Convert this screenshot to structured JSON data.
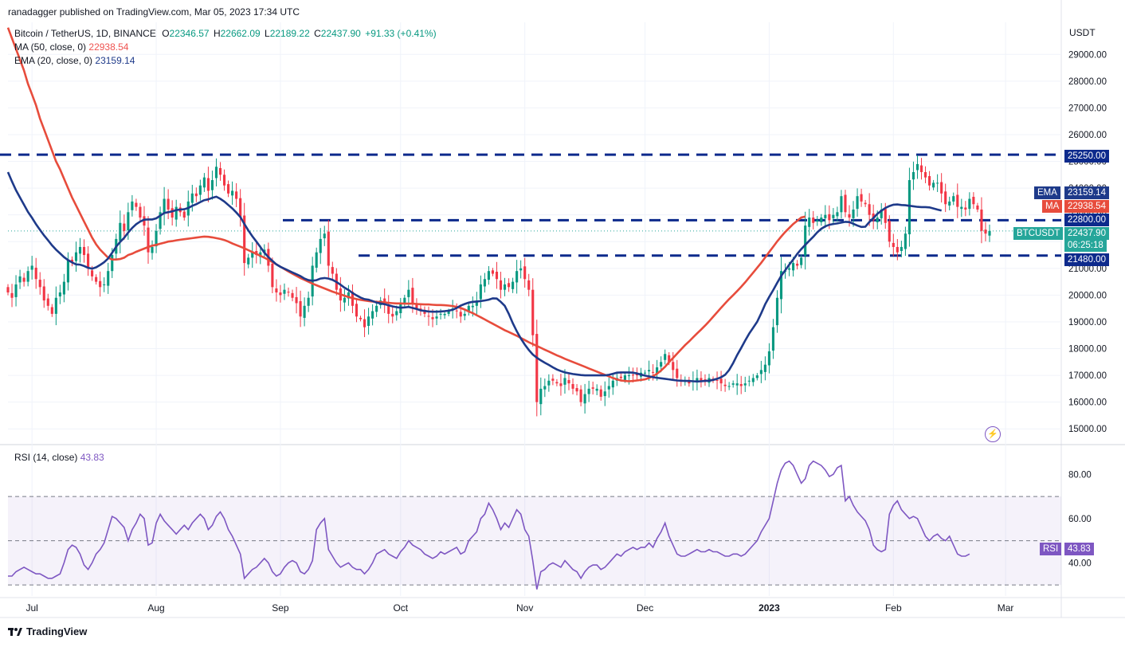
{
  "publisher": "ranadagger published on TradingView.com, Mar 05, 2023 17:34 UTC",
  "header": {
    "symbol": "Bitcoin / TetherUS, 1D, BINANCE",
    "open_label": "O",
    "open": "22346.57",
    "high_label": "H",
    "high": "22662.09",
    "low_label": "L",
    "low": "22189.22",
    "close_label": "C",
    "close": "22437.90",
    "change": "+91.33 (+0.41%)"
  },
  "ma_legend": {
    "label": "MA (50, close, 0)",
    "value": "22938.54"
  },
  "ema_legend": {
    "label": "EMA (20, close, 0)",
    "value": "23159.14"
  },
  "rsi_legend": {
    "label": "RSI (14, close)",
    "value": "43.83"
  },
  "currency": "USDT",
  "tags": {
    "ema": {
      "name": "EMA",
      "value": "23159.14"
    },
    "ma": {
      "name": "MA",
      "value": "22938.54"
    },
    "level_high": "25250.00",
    "level_mid": "22800.00",
    "price_symbol": "BTCUSDT",
    "price_value": "22437.90",
    "countdown": "06:25:18",
    "level_low": "21480.00",
    "rsi_name": "RSI",
    "rsi_value": "43.83"
  },
  "footer": {
    "brand": "TradingView"
  },
  "colors": {
    "up": "#089981",
    "down": "#f23645",
    "ma": "#e74c3c",
    "ema": "#1e3a8a",
    "rsi": "#7e57c2",
    "level": "#0d2a8c"
  },
  "chart_data": {
    "type": "candlestick",
    "title": "Bitcoin / TetherUS, 1D, BINANCE",
    "price_axis": {
      "ylim": [
        14500,
        30200
      ],
      "ticks": [
        15000,
        16000,
        17000,
        18000,
        19000,
        20000,
        21000,
        22000,
        23000,
        24000,
        25000,
        26000,
        27000,
        28000,
        29000
      ],
      "tick_labels": [
        "15000.00",
        "16000.00",
        "17000.00",
        "18000.00",
        "19000.00",
        "20000.00",
        "21000.00",
        "22000.00",
        "23000.00",
        "24000.00",
        "25000.00",
        "26000.00",
        "27000.00",
        "28000.00",
        "29000.00"
      ]
    },
    "x_axis": {
      "labels": [
        "Jul",
        "Aug",
        "Sep",
        "Oct",
        "Nov",
        "Dec",
        "2023",
        "Feb",
        "Mar"
      ],
      "label_day_index": [
        6,
        37,
        68,
        98,
        129,
        159,
        190,
        221,
        249
      ]
    },
    "levels": [
      25250,
      22800,
      21480
    ],
    "close": [
      20100,
      19900,
      20400,
      20700,
      20500,
      20900,
      21100,
      20600,
      20300,
      19800,
      19600,
      19300,
      19900,
      20100,
      20500,
      21300,
      21200,
      21600,
      21800,
      21500,
      21000,
      20700,
      20500,
      20300,
      20400,
      20900,
      21500,
      22100,
      22700,
      22400,
      23100,
      23500,
      23300,
      22900,
      22600,
      21600,
      21800,
      22400,
      23100,
      23600,
      23200,
      22900,
      23300,
      23100,
      22900,
      23500,
      23800,
      23700,
      24100,
      24400,
      23900,
      24300,
      24800,
      24500,
      24100,
      23800,
      23900,
      23600,
      22900,
      21200,
      21400,
      21600,
      21500,
      21600,
      21700,
      21100,
      20300,
      20100,
      20000,
      20200,
      20100,
      19900,
      19700,
      19200,
      19600,
      19900,
      21100,
      21600,
      22100,
      22300,
      21100,
      20800,
      20200,
      19800,
      19900,
      20100,
      19600,
      19200,
      19100,
      18800,
      19200,
      19400,
      19600,
      19800,
      19700,
      19300,
      19200,
      19400,
      19700,
      19900,
      20200,
      19700,
      19500,
      19400,
      19300,
      19200,
      19100,
      19200,
      19300,
      19300,
      19400,
      19500,
      19400,
      19200,
      19300,
      19600,
      19600,
      19800,
      20400,
      20600,
      20900,
      20800,
      20600,
      20200,
      20400,
      20300,
      20500,
      20900,
      21000,
      20600,
      20200,
      18500,
      16000,
      16500,
      16600,
      16800,
      16800,
      16700,
      16600,
      16900,
      16700,
      16500,
      16400,
      16000,
      16300,
      16500,
      16500,
      16500,
      16200,
      16400,
      16600,
      16800,
      16900,
      16900,
      17000,
      17000,
      17000,
      17000,
      17100,
      17100,
      17200,
      17100,
      17300,
      17500,
      17800,
      17500,
      17200,
      16900,
      16800,
      16800,
      16700,
      16800,
      16900,
      16800,
      16800,
      16900,
      16800,
      16800,
      16700,
      16600,
      16600,
      16700,
      16700,
      16600,
      16700,
      16800,
      16900,
      17000,
      17200,
      17400,
      17900,
      18800,
      19900,
      20900,
      20900,
      21000,
      21200,
      21100,
      21400,
      22600,
      22900,
      22700,
      22800,
      22900,
      23000,
      22800,
      23000,
      23100,
      23700,
      23100,
      22900,
      23200,
      23700,
      23500,
      23400,
      23000,
      22800,
      22900,
      23200,
      22700,
      22000,
      21800,
      21600,
      21800,
      22300,
      24300,
      24600,
      24900,
      24600,
      24400,
      24100,
      24200,
      24200,
      23800,
      23400,
      23500,
      23700,
      23300,
      23300,
      23200,
      23600,
      23400,
      23200,
      22400,
      22300,
      22400
    ],
    "ema20": [
      24600,
      24250,
      23920,
      23650,
      23380,
      23110,
      22890,
      22650,
      22440,
      22230,
      22050,
      21860,
      21700,
      21560,
      21420,
      21310,
      21220,
      21150,
      21140,
      21090,
      21020,
      20990,
      21040,
      21130,
      21230,
      21370,
      21580,
      21810,
      21990,
      22140,
      22340,
      22510,
      22650,
      22750,
      22820,
      22830,
      22830,
      22870,
      22970,
      23070,
      23100,
      23130,
      23180,
      23200,
      23210,
      23260,
      23340,
      23400,
      23480,
      23550,
      23580,
      23640,
      23680,
      23600,
      23500,
      23370,
      23240,
      23090,
      22920,
      22660,
      22420,
      22200,
      22000,
      21800,
      21590,
      21420,
      21280,
      21150,
      21060,
      20990,
      20920,
      20850,
      20780,
      20710,
      20620,
      20560,
      20540,
      20560,
      20620,
      20640,
      20620,
      20570,
      20490,
      20390,
      20280,
      20190,
      20080,
      19990,
      19910,
      19850,
      19830,
      19780,
      19720,
      19690,
      19660,
      19620,
      19580,
      19550,
      19530,
      19540,
      19560,
      19520,
      19480,
      19430,
      19410,
      19390,
      19380,
      19380,
      19390,
      19400,
      19420,
      19450,
      19520,
      19610,
      19670,
      19720,
      19750,
      19760,
      19780,
      19800,
      19830,
      19880,
      19870,
      19750,
      19600,
      19300,
      18950,
      18650,
      18380,
      18150,
      17950,
      17780,
      17660,
      17560,
      17470,
      17390,
      17300,
      17220,
      17160,
      17110,
      17080,
      17050,
      17030,
      17010,
      17000,
      17000,
      17000,
      17000,
      17000,
      17000,
      17020,
      17060,
      17100,
      17110,
      17110,
      17110,
      17100,
      17070,
      17030,
      16990,
      16960,
      16930,
      16910,
      16890,
      16870,
      16850,
      16830,
      16810,
      16800,
      16790,
      16790,
      16780,
      16770,
      16780,
      16790,
      16800,
      16830,
      16870,
      16930,
      17020,
      17200,
      17460,
      17760,
      18020,
      18300,
      18560,
      18780,
      19000,
      19320,
      19660,
      19930,
      20190,
      20460,
      20720,
      20930,
      21140,
      21330,
      21540,
      21720,
      21880,
      22030,
      22180,
      22350,
      22480,
      22570,
      22630,
      22660,
      22680,
      22710,
      22740,
      22730,
      22670,
      22600,
      22550,
      22560,
      22730,
      22880,
      23040,
      23150,
      23260,
      23330,
      23380,
      23390,
      23370,
      23360,
      23340,
      23320,
      23300,
      23290,
      23290,
      23280,
      23240,
      23200,
      23159
    ],
    "ma50": [
      30000,
      29600,
      29200,
      28800,
      28400,
      27900,
      27500,
      27100,
      26600,
      26200,
      25800,
      25400,
      25000,
      24700,
      24350,
      24000,
      23650,
      23350,
      23050,
      22750,
      22450,
      22150,
      21900,
      21700,
      21550,
      21400,
      21330,
      21330,
      21350,
      21400,
      21500,
      21550,
      21620,
      21680,
      21740,
      21800,
      21850,
      21880,
      21920,
      21960,
      22000,
      22020,
      22050,
      22070,
      22090,
      22110,
      22130,
      22150,
      22170,
      22190,
      22180,
      22160,
      22130,
      22100,
      22060,
      22000,
      21930,
      21870,
      21810,
      21750,
      21680,
      21610,
      21540,
      21470,
      21400,
      21320,
      21240,
      21150,
      21060,
      20970,
      20880,
      20800,
      20720,
      20640,
      20570,
      20500,
      20430,
      20370,
      20310,
      20250,
      20190,
      20130,
      20080,
      20030,
      19980,
      19930,
      19890,
      19850,
      19820,
      19800,
      19780,
      19760,
      19750,
      19740,
      19730,
      19710,
      19700,
      19690,
      19690,
      19680,
      19680,
      19680,
      19670,
      19660,
      19650,
      19650,
      19640,
      19630,
      19630,
      19620,
      19610,
      19590,
      19560,
      19520,
      19460,
      19390,
      19330,
      19250,
      19170,
      19090,
      19010,
      18930,
      18850,
      18770,
      18690,
      18620,
      18550,
      18480,
      18400,
      18320,
      18240,
      18170,
      18100,
      18030,
      17960,
      17890,
      17820,
      17750,
      17690,
      17620,
      17560,
      17500,
      17440,
      17380,
      17320,
      17260,
      17200,
      17140,
      17080,
      17020,
      16960,
      16900,
      16850,
      16810,
      16790,
      16780,
      16790,
      16810,
      16830,
      16850,
      16900,
      16970,
      17060,
      17180,
      17320,
      17490,
      17650,
      17810,
      17970,
      18130,
      18270,
      18420,
      18570,
      18710,
      18860,
      19020,
      19190,
      19360,
      19530,
      19690,
      19850,
      20000,
      20150,
      20310,
      20480,
      20660,
      20840,
      21020,
      21210,
      21410,
      21610,
      21810,
      22010,
      22190,
      22360,
      22510,
      22660,
      22780,
      22900,
      22938
    ],
    "rsi_axis": {
      "ylim": [
        25,
        92
      ],
      "ticks": [
        40,
        60,
        80
      ],
      "tick_labels": [
        "40.00",
        "60.00",
        "80.00"
      ],
      "band": [
        30,
        70
      ]
    },
    "rsi": [
      34,
      34,
      36,
      37,
      38,
      37,
      36,
      35,
      35,
      34,
      33,
      33,
      34,
      35,
      40,
      46,
      48,
      47,
      44,
      39,
      37,
      40,
      44,
      46,
      49,
      55,
      61,
      60,
      58,
      56,
      50,
      55,
      58,
      62,
      60,
      48,
      49,
      58,
      62,
      59,
      57,
      55,
      53,
      55,
      57,
      55,
      58,
      60,
      62,
      60,
      55,
      57,
      61,
      63,
      60,
      55,
      52,
      48,
      44,
      33,
      35,
      37,
      38,
      40,
      42,
      40,
      36,
      34,
      35,
      38,
      40,
      41,
      40,
      36,
      35,
      37,
      41,
      55,
      58,
      60,
      46,
      43,
      40,
      38,
      39,
      40,
      38,
      37,
      37,
      35,
      37,
      40,
      44,
      45,
      46,
      44,
      43,
      42,
      45,
      47,
      50,
      48,
      47,
      46,
      44,
      43,
      42,
      43,
      45,
      44,
      45,
      46,
      47,
      44,
      45,
      50,
      52,
      54,
      60,
      62,
      67,
      64,
      60,
      55,
      58,
      56,
      60,
      64,
      62,
      55,
      52,
      41,
      28,
      36,
      37,
      39,
      40,
      39,
      38,
      41,
      39,
      37,
      36,
      33,
      36,
      38,
      39,
      39,
      37,
      38,
      40,
      42,
      44,
      43,
      45,
      46,
      47,
      46,
      47,
      47,
      49,
      47,
      51,
      54,
      58,
      52,
      48,
      44,
      43,
      43,
      44,
      45,
      46,
      45,
      45,
      46,
      45,
      45,
      44,
      43,
      43,
      44,
      44,
      43,
      44,
      46,
      48,
      50,
      54,
      57,
      60,
      68,
      76,
      82,
      85,
      86,
      84,
      80,
      76,
      78,
      84,
      86,
      85,
      84,
      82,
      79,
      80,
      83,
      84,
      68,
      70,
      66,
      63,
      61,
      59,
      55,
      48,
      46,
      45,
      46,
      62,
      66,
      68,
      64,
      62,
      60,
      61,
      60,
      56,
      52,
      50,
      52,
      53,
      51,
      50,
      52,
      48,
      44,
      43,
      43,
      44
    ],
    "candle_ranges_note": "high/low derived as close±range for rendering"
  }
}
